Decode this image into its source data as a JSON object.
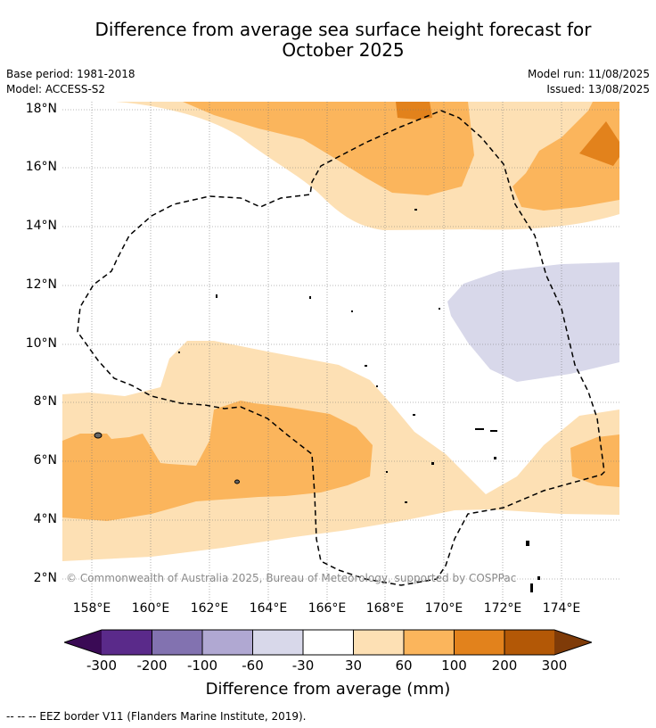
{
  "title_line1": "Difference from average sea surface height forecast for",
  "title_line2": "October 2025",
  "meta": {
    "base_period": "Base period: 1981-2018",
    "model": "Model: ACCESS-S2",
    "model_run": "Model run: 11/08/2025",
    "issued": "Issued: 13/08/2025"
  },
  "latitude_labels": [
    "18°N",
    "16°N",
    "14°N",
    "12°N",
    "10°N",
    "8°N",
    "6°N",
    "4°N",
    "2°N"
  ],
  "longitude_labels": [
    "158°E",
    "160°E",
    "162°E",
    "164°E",
    "166°E",
    "168°E",
    "170°E",
    "172°E",
    "174°E"
  ],
  "copyright": "© Commonwealth of Australia 2025, Bureau of Meteorology, supported by COSPPac",
  "colorbar": {
    "ticks": [
      "-300",
      "-200",
      "-100",
      "-60",
      "-30",
      "30",
      "60",
      "100",
      "200",
      "300"
    ],
    "colors": [
      "#5a2a8a",
      "#8272b0",
      "#b0a8d2",
      "#d8d8ea",
      "#ffffff",
      "#fde0b4",
      "#fbb55c",
      "#e2821c",
      "#b35806"
    ],
    "under_color": "#3a0a55",
    "over_color": "#7f3b08",
    "label": "Difference from average (mm)"
  },
  "footer": "-- -- -- EEZ border V11 (Flanders Marine Institute, 2019)."
}
